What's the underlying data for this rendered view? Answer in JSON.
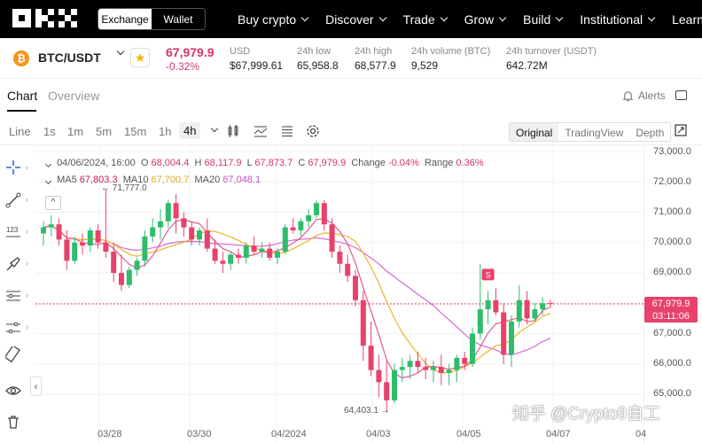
{
  "nav": {
    "exchange": "Exchange",
    "wallet": "Wallet",
    "links": [
      "Buy crypto",
      "Discover",
      "Trade",
      "Grow",
      "Build",
      "Institutional",
      "Learn"
    ]
  },
  "ticker": {
    "pair": "BTC/USDT",
    "coin_glyph": "₿",
    "price": "67,979.9",
    "change": "-0.32%",
    "stats": [
      {
        "key": "USD",
        "value": "$67,999.61"
      },
      {
        "key": "24h low",
        "value": "65,958.8"
      },
      {
        "key": "24h high",
        "value": "68,577.9"
      },
      {
        "key": "24h volume (BTC)",
        "value": "9,529"
      },
      {
        "key": "24h turnover (USDT)",
        "value": "642.72M"
      }
    ]
  },
  "tabs": {
    "chart": "Chart",
    "overview": "Overview",
    "alerts": "Alerts"
  },
  "toolbar": {
    "line": "Line",
    "timeframes": [
      "1s",
      "1m",
      "5m",
      "15m",
      "1h",
      "4h"
    ],
    "views": [
      "Original",
      "TradingView",
      "Depth"
    ]
  },
  "legend": {
    "date": "04/06/2024, 16:00",
    "o_label": "O",
    "o": "68,004.4",
    "h_label": "H",
    "h": "68,117.9",
    "l_label": "L",
    "l": "67,873.7",
    "c_label": "C",
    "c": "67,979.9",
    "change_label": "Change",
    "change": "-0.04%",
    "range_label": "Range",
    "range": "0.36%",
    "ma5_label": "MA5",
    "ma5": "67,803.3",
    "ma10_label": "MA10",
    "ma10": "67,700.7",
    "ma20_label": "MA20",
    "ma20": "67,048.1"
  },
  "chart_data": {
    "type": "candlestick",
    "y_ticks": [
      "73,000.0",
      "72,000.0",
      "71,000.0",
      "70,000.0",
      "69,000.0",
      "67,000.0",
      "66,000.0",
      "65,000.0"
    ],
    "x_ticks": [
      "03/28",
      "03/30",
      "04/2024",
      "04/03",
      "04/05",
      "04/07",
      "04"
    ],
    "high_label": "71,777.0",
    "low_label": "64,403.1",
    "last_price": "67,979.9",
    "countdown": "03:11:06",
    "marker": "S",
    "candles": [
      [
        70300,
        70700,
        69900,
        70500
      ],
      [
        70500,
        70900,
        70200,
        70600
      ],
      [
        70600,
        70800,
        69900,
        70100
      ],
      [
        70100,
        70400,
        69100,
        69400
      ],
      [
        69400,
        70200,
        69300,
        70000
      ],
      [
        70000,
        70300,
        69600,
        69900
      ],
      [
        69900,
        70500,
        69700,
        70400
      ],
      [
        70400,
        70600,
        69800,
        70000
      ],
      [
        70000,
        71777,
        69500,
        69700
      ],
      [
        69700,
        70000,
        68700,
        69000
      ],
      [
        69000,
        69600,
        68400,
        68600
      ],
      [
        68600,
        69200,
        68500,
        69100
      ],
      [
        69100,
        69500,
        68900,
        69400
      ],
      [
        69400,
        70400,
        69200,
        70200
      ],
      [
        70200,
        70800,
        70000,
        70500
      ],
      [
        70500,
        71100,
        70100,
        70700
      ],
      [
        70700,
        71400,
        70500,
        71300
      ],
      [
        71300,
        71600,
        70300,
        70800
      ],
      [
        70800,
        71000,
        70200,
        70500
      ],
      [
        70500,
        70700,
        69900,
        70100
      ],
      [
        70100,
        70500,
        69900,
        70400
      ],
      [
        70400,
        70800,
        69700,
        69800
      ],
      [
        69800,
        70100,
        69300,
        69400
      ],
      [
        69400,
        69700,
        69000,
        69300
      ],
      [
        69300,
        69700,
        69100,
        69600
      ],
      [
        69600,
        69800,
        69300,
        69500
      ],
      [
        69500,
        70000,
        69300,
        69900
      ],
      [
        69900,
        70200,
        69600,
        69700
      ],
      [
        69700,
        70000,
        69500,
        69800
      ],
      [
        69800,
        70000,
        69400,
        69500
      ],
      [
        69500,
        69800,
        69300,
        69700
      ],
      [
        69700,
        70600,
        69600,
        70500
      ],
      [
        70500,
        70800,
        70300,
        70400
      ],
      [
        70400,
        70800,
        70200,
        70700
      ],
      [
        70700,
        71100,
        70500,
        70900
      ],
      [
        70900,
        71400,
        70800,
        71300
      ],
      [
        71300,
        71400,
        70400,
        70600
      ],
      [
        70600,
        70800,
        69500,
        69700
      ],
      [
        69700,
        69900,
        69000,
        69300
      ],
      [
        69300,
        69600,
        68700,
        68900
      ],
      [
        68900,
        69100,
        67900,
        68100
      ],
      [
        68100,
        68400,
        66100,
        66600
      ],
      [
        66600,
        67400,
        65600,
        65800
      ],
      [
        65800,
        66300,
        64900,
        65400
      ],
      [
        65400,
        66100,
        64403,
        64800
      ],
      [
        64800,
        66000,
        64700,
        65800
      ],
      [
        65800,
        66200,
        65400,
        65900
      ],
      [
        65900,
        66300,
        65500,
        66100
      ],
      [
        66100,
        66400,
        65700,
        65900
      ],
      [
        65900,
        66200,
        65500,
        65800
      ],
      [
        65800,
        66100,
        65400,
        65900
      ],
      [
        65900,
        66300,
        65300,
        65700
      ],
      [
        65700,
        66000,
        65300,
        65800
      ],
      [
        65800,
        66300,
        65400,
        66200
      ],
      [
        66200,
        66400,
        65800,
        66000
      ],
      [
        66000,
        67200,
        65900,
        67000
      ],
      [
        67000,
        69300,
        66800,
        67800
      ],
      [
        67800,
        68400,
        67300,
        68100
      ],
      [
        68100,
        68500,
        67600,
        67700
      ],
      [
        67700,
        68000,
        66000,
        66300
      ],
      [
        66300,
        67600,
        65900,
        67400
      ],
      [
        67400,
        68600,
        67200,
        68100
      ],
      [
        68100,
        68400,
        67300,
        67500
      ],
      [
        67500,
        68000,
        67400,
        67800
      ],
      [
        67800,
        68200,
        67600,
        68000
      ],
      [
        68004.4,
        68117.9,
        67873.7,
        67979.9
      ]
    ]
  }
}
